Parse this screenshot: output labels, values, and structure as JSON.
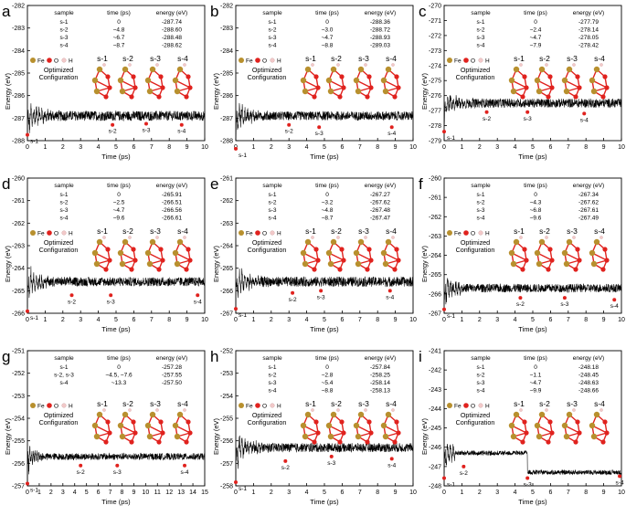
{
  "figure": {
    "xlabel": "Time (ps)",
    "ylabel": "Energy (eV)",
    "legend": {
      "fe": "Fe",
      "o": "O",
      "h": "H"
    },
    "caption": "Optimized Configuration",
    "caption_lines": [
      "Optimized",
      "Configuration"
    ],
    "table_headers": [
      "sample",
      "time (ps)",
      "energy (eV)"
    ],
    "colors": {
      "fe": "#b8902e",
      "o": "#e0221e",
      "h": "#f2c9c9",
      "trace": "#000000",
      "marker": "#e0221e"
    }
  },
  "chart_data": [
    {
      "panel": "a",
      "type": "line",
      "xlim": [
        0,
        10
      ],
      "ylim": [
        -288,
        -282
      ],
      "xticks": [
        "0",
        "1",
        "2",
        "3",
        "4",
        "5",
        "6",
        "7",
        "8",
        "9",
        "10"
      ],
      "yticks": [
        "-288",
        "-287",
        "-286",
        "-285",
        "-284",
        "-283",
        "-282"
      ],
      "series": {
        "name": "energy",
        "start": -288.2,
        "plateau": -286.9,
        "amp": 0.22,
        "decay": 0.6,
        "osc": 0.55,
        "step_at": null,
        "step_val": null
      },
      "samples": [
        {
          "label": "s-1",
          "time": 0,
          "time_text": "0",
          "energy_text": "-287.74",
          "marker_y": -287.74
        },
        {
          "label": "s-2",
          "time": 4.8,
          "time_text": "~4.8",
          "energy_text": "-288.60",
          "marker_y": -287.3
        },
        {
          "label": "s-3",
          "time": 6.7,
          "time_text": "~6.7",
          "energy_text": "-288.48",
          "marker_y": -287.25
        },
        {
          "label": "s-4",
          "time": 8.7,
          "time_text": "~8.7",
          "energy_text": "-288.62",
          "marker_y": -287.3
        }
      ]
    },
    {
      "panel": "b",
      "type": "line",
      "xlim": [
        0,
        10
      ],
      "ylim": [
        -288,
        -282
      ],
      "xticks": [
        "0",
        "1",
        "2",
        "3",
        "4",
        "5",
        "6",
        "7",
        "8",
        "9",
        "10"
      ],
      "yticks": [
        "-288",
        "-287",
        "-286",
        "-285",
        "-284",
        "-283",
        "-282"
      ],
      "series": {
        "name": "energy",
        "start": -288.3,
        "plateau": -286.9,
        "amp": 0.2,
        "decay": 0.6,
        "osc": 0.5,
        "step_at": null,
        "step_val": null
      },
      "samples": [
        {
          "label": "s-1",
          "time": 0,
          "time_text": "0",
          "energy_text": "-288.36",
          "marker_y": -288.36
        },
        {
          "label": "s-2",
          "time": 3.0,
          "time_text": "~3.0",
          "energy_text": "-288.72",
          "marker_y": -287.3
        },
        {
          "label": "s-3",
          "time": 4.7,
          "time_text": "~4.7",
          "energy_text": "-288.93",
          "marker_y": -287.4
        },
        {
          "label": "s-4",
          "time": 8.8,
          "time_text": "~8.8",
          "energy_text": "-289.03",
          "marker_y": -287.4
        }
      ]
    },
    {
      "panel": "c",
      "type": "line",
      "xlim": [
        0,
        10
      ],
      "ylim": [
        -279,
        -270
      ],
      "xticks": [
        "0",
        "1",
        "2",
        "3",
        "4",
        "5",
        "6",
        "7",
        "8",
        "9",
        "10"
      ],
      "yticks": [
        "-279",
        "-278",
        "-277",
        "-276",
        "-275",
        "-274",
        "-273",
        "-272",
        "-271",
        "-270"
      ],
      "series": {
        "name": "energy",
        "start": -278.4,
        "plateau": -276.5,
        "amp": 0.3,
        "decay": 0.7,
        "osc": 0.6,
        "step_at": null,
        "step_val": null
      },
      "samples": [
        {
          "label": "s-1",
          "time": 0,
          "time_text": "0",
          "energy_text": "-277.79",
          "marker_y": -278.4
        },
        {
          "label": "s-2",
          "time": 2.4,
          "time_text": "~2.4",
          "energy_text": "-278.14",
          "marker_y": -277.1
        },
        {
          "label": "s-3",
          "time": 4.7,
          "time_text": "~4.7",
          "energy_text": "-278.05",
          "marker_y": -277.1
        },
        {
          "label": "s-4",
          "time": 7.9,
          "time_text": "~7.9",
          "energy_text": "-278.42",
          "marker_y": -277.2
        }
      ]
    },
    {
      "panel": "d",
      "type": "line",
      "xlim": [
        0,
        10
      ],
      "ylim": [
        -266,
        -260
      ],
      "xticks": [
        "0",
        "1",
        "2",
        "3",
        "4",
        "5",
        "6",
        "7",
        "8",
        "9",
        "10"
      ],
      "yticks": [
        "-266",
        "-265",
        "-264",
        "-263",
        "-262",
        "-261",
        "-260"
      ],
      "series": {
        "name": "energy",
        "start": -265.8,
        "plateau": -264.6,
        "amp": 0.2,
        "decay": 0.6,
        "osc": 0.55,
        "step_at": null,
        "step_val": null
      },
      "samples": [
        {
          "label": "s-1",
          "time": 0,
          "time_text": "0",
          "energy_text": "-265.91",
          "marker_y": -265.91
        },
        {
          "label": "s-2",
          "time": 2.5,
          "time_text": "~2.5",
          "energy_text": "-266.51",
          "marker_y": -265.2
        },
        {
          "label": "s-3",
          "time": 4.7,
          "time_text": "~4.7",
          "energy_text": "-266.56",
          "marker_y": -265.2
        },
        {
          "label": "s-4",
          "time": 9.6,
          "time_text": "~9.6",
          "energy_text": "-266.61",
          "marker_y": -265.2
        }
      ]
    },
    {
      "panel": "e",
      "type": "line",
      "xlim": [
        0,
        10
      ],
      "ylim": [
        -267,
        -261
      ],
      "xticks": [
        "0",
        "1",
        "2",
        "3",
        "4",
        "5",
        "6",
        "7",
        "8",
        "9",
        "10"
      ],
      "yticks": [
        "-267",
        "-266",
        "-265",
        "-264",
        "-263",
        "-262",
        "-261"
      ],
      "series": {
        "name": "energy",
        "start": -266.8,
        "plateau": -265.6,
        "amp": 0.22,
        "decay": 0.6,
        "osc": 0.55,
        "step_at": null,
        "step_val": null
      },
      "samples": [
        {
          "label": "s-1",
          "time": 0,
          "time_text": "0",
          "energy_text": "-267.27",
          "marker_y": -266.8
        },
        {
          "label": "s-2",
          "time": 3.2,
          "time_text": "~3.2",
          "energy_text": "-267.62",
          "marker_y": -266.1
        },
        {
          "label": "s-3",
          "time": 4.8,
          "time_text": "~4.8",
          "energy_text": "-267.48",
          "marker_y": -266.0
        },
        {
          "label": "s-4",
          "time": 8.7,
          "time_text": "~8.7",
          "energy_text": "-267.47",
          "marker_y": -266.0
        }
      ]
    },
    {
      "panel": "f",
      "type": "line",
      "xlim": [
        0,
        10
      ],
      "ylim": [
        -267,
        -260
      ],
      "xticks": [
        "0",
        "1",
        "2",
        "3",
        "4",
        "5",
        "6",
        "7",
        "8",
        "9",
        "10"
      ],
      "yticks": [
        "-267",
        "-266",
        "-265",
        "-264",
        "-263",
        "-262",
        "-261",
        "-260"
      ],
      "series": {
        "name": "energy",
        "start": -266.8,
        "plateau": -265.7,
        "amp": 0.22,
        "decay": 0.6,
        "osc": 0.55,
        "step_at": null,
        "step_val": null
      },
      "samples": [
        {
          "label": "s-1",
          "time": 0,
          "time_text": "0",
          "energy_text": "-267.34",
          "marker_y": -266.8
        },
        {
          "label": "s-2",
          "time": 4.3,
          "time_text": "~4.3",
          "energy_text": "-267.62",
          "marker_y": -266.2
        },
        {
          "label": "s-3",
          "time": 6.8,
          "time_text": "~6.8",
          "energy_text": "-267.61",
          "marker_y": -266.2
        },
        {
          "label": "s-4",
          "time": 9.6,
          "time_text": "~9.6",
          "energy_text": "-267.49",
          "marker_y": -266.3
        }
      ]
    },
    {
      "panel": "g",
      "type": "line",
      "xlim": [
        0,
        15
      ],
      "ylim": [
        -257,
        -251
      ],
      "xticks": [
        "0",
        "1",
        "2",
        "3",
        "4",
        "5",
        "6",
        "7",
        "8",
        "9",
        "10",
        "11",
        "12",
        "13",
        "14",
        "15"
      ],
      "yticks": [
        "-257",
        "-256",
        "-255",
        "-254",
        "-253",
        "-252",
        "-251"
      ],
      "series": {
        "name": "energy",
        "start": -256.8,
        "plateau": -255.7,
        "amp": 0.15,
        "decay": 0.6,
        "osc": 0.55,
        "step_at": null,
        "step_val": null
      },
      "samples": [
        {
          "label": "s-1",
          "time": 0,
          "time_text": "0",
          "energy_text": "-257.28",
          "marker_y": -256.9
        },
        {
          "label": "s-2",
          "time": 4.5,
          "time_text": "~4.5, ~7.6",
          "energy_text": "-257.55",
          "marker_y": -256.1,
          "table_label": "s-2, s-3"
        },
        {
          "label": "s-3",
          "time": 7.6,
          "time_text": "",
          "energy_text": "",
          "marker_y": -256.1,
          "in_table": false
        },
        {
          "label": "s-4",
          "time": 13.3,
          "time_text": "~13.3",
          "energy_text": "-257.50",
          "marker_y": -256.1
        }
      ]
    },
    {
      "panel": "h",
      "type": "line",
      "xlim": [
        0,
        10
      ],
      "ylim": [
        -258,
        -252
      ],
      "xticks": [
        "0",
        "1",
        "2",
        "3",
        "4",
        "5",
        "6",
        "7",
        "8",
        "9",
        "10"
      ],
      "yticks": [
        "-258",
        "-257",
        "-256",
        "-255",
        "-254",
        "-253",
        "-252"
      ],
      "series": {
        "name": "energy",
        "start": -257.8,
        "plateau": -256.3,
        "amp": 0.2,
        "decay": 0.6,
        "osc": 0.6,
        "step_at": null,
        "step_val": null
      },
      "samples": [
        {
          "label": "s-1",
          "time": 0,
          "time_text": "0",
          "energy_text": "-257.84",
          "marker_y": -257.84
        },
        {
          "label": "s-2",
          "time": 2.8,
          "time_text": "~2.8",
          "energy_text": "-258.25",
          "marker_y": -256.9
        },
        {
          "label": "s-3",
          "time": 5.4,
          "time_text": "~5.4",
          "energy_text": "-258.14",
          "marker_y": -256.7
        },
        {
          "label": "s-4",
          "time": 8.8,
          "time_text": "~8.8",
          "energy_text": "-258.13",
          "marker_y": -256.8
        }
      ]
    },
    {
      "panel": "i",
      "type": "line",
      "xlim": [
        0,
        10
      ],
      "ylim": [
        -248,
        -241
      ],
      "xticks": [
        "0",
        "1",
        "2",
        "3",
        "4",
        "5",
        "6",
        "7",
        "8",
        "9",
        "10"
      ],
      "yticks": [
        "-248",
        "-247",
        "-246",
        "-245",
        "-244",
        "-243",
        "-242",
        "-241"
      ],
      "series": {
        "name": "energy",
        "start": -247.6,
        "plateau": -246.3,
        "amp": 0.12,
        "decay": 0.8,
        "osc": 0.6,
        "step_at": 4.7,
        "step_val": -247.3
      },
      "samples": [
        {
          "label": "s-1",
          "time": 0,
          "time_text": "0",
          "energy_text": "-248.18",
          "marker_y": -247.6
        },
        {
          "label": "s-2",
          "time": 1.1,
          "time_text": "~1.1",
          "energy_text": "-248.45",
          "marker_y": -247.0
        },
        {
          "label": "s-3",
          "time": 4.7,
          "time_text": "~4.7",
          "energy_text": "-248.63",
          "marker_y": -247.6
        },
        {
          "label": "s-4",
          "time": 9.9,
          "time_text": "~9.9",
          "energy_text": "-248.66",
          "marker_y": -247.5
        }
      ]
    }
  ]
}
